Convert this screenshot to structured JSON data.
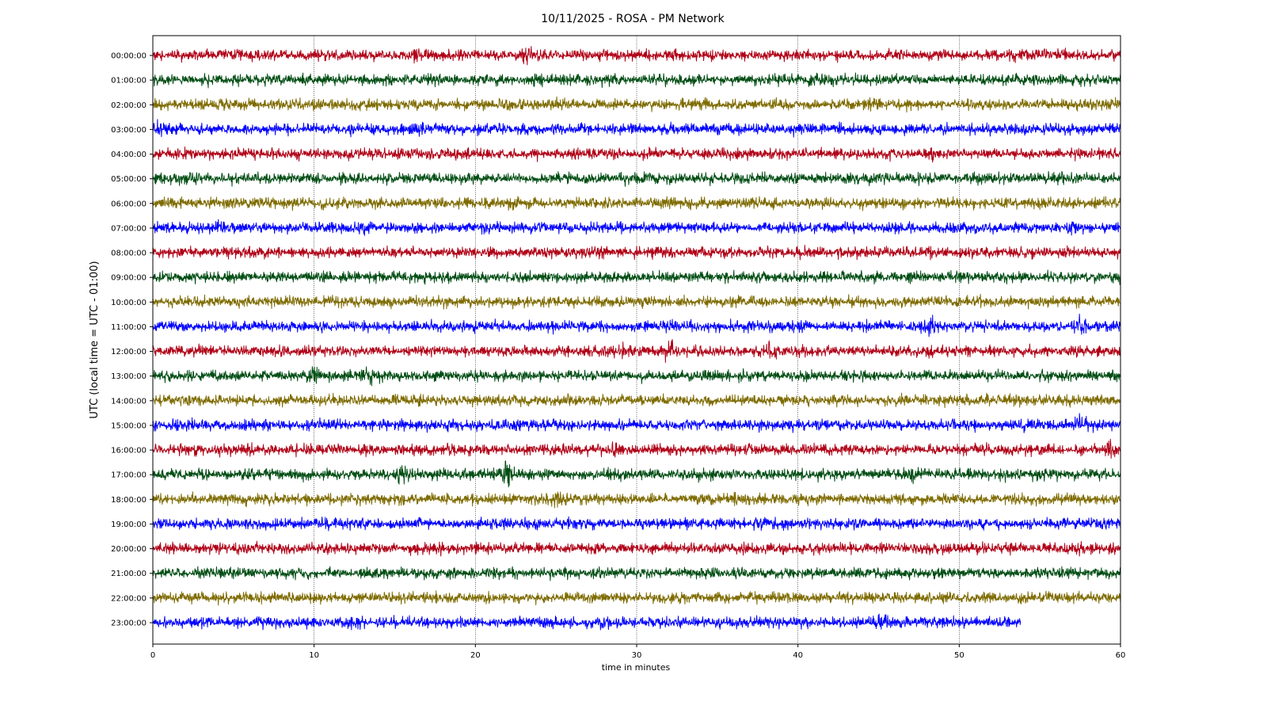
{
  "chart_data": {
    "type": "line",
    "title": "10/11/2025 - ROSA - PM Network",
    "xlabel": "time in minutes",
    "ylabel": "UTC (local time = UTC - 01:00)",
    "xlim": [
      0,
      60
    ],
    "x_ticks": [
      "0",
      "10",
      "20",
      "30",
      "40",
      "50",
      "60"
    ],
    "x_tick_values": [
      0,
      10,
      20,
      30,
      40,
      50,
      60
    ],
    "grid": "vertical dotted at 10-minute ticks",
    "palette": [
      "#b00016",
      "#004d13",
      "#7e6b00",
      "#0000ff"
    ],
    "rows": [
      {
        "label": "00:00:00",
        "end": 60,
        "color": "#b00016",
        "events": [
          {
            "t": 23.2,
            "amp": 1.9
          },
          {
            "t": 16.5,
            "amp": 1.4
          }
        ]
      },
      {
        "label": "01:00:00",
        "end": 60,
        "color": "#004d13",
        "events": [
          {
            "t": 10.5,
            "amp": 1.5
          },
          {
            "t": 41.2,
            "amp": 1.6
          }
        ]
      },
      {
        "label": "02:00:00",
        "end": 60,
        "color": "#7e6b00",
        "events": [
          {
            "t": 25.2,
            "amp": 1.4
          }
        ]
      },
      {
        "label": "03:00:00",
        "end": 60,
        "color": "#0000ff",
        "events": [
          {
            "t": 0.4,
            "amp": 1.7
          },
          {
            "t": 16.3,
            "amp": 1.4
          }
        ]
      },
      {
        "label": "04:00:00",
        "end": 60,
        "color": "#b00016",
        "events": [
          {
            "t": 48.3,
            "amp": 1.4
          }
        ]
      },
      {
        "label": "05:00:00",
        "end": 60,
        "color": "#004d13",
        "events": [
          {
            "t": 2.5,
            "amp": 1.8
          },
          {
            "t": 51.0,
            "amp": 1.4
          }
        ]
      },
      {
        "label": "06:00:00",
        "end": 60,
        "color": "#7e6b00",
        "events": [
          {
            "t": 51.3,
            "amp": 1.3
          }
        ]
      },
      {
        "label": "07:00:00",
        "end": 60,
        "color": "#0000ff",
        "events": [
          {
            "t": 4.3,
            "amp": 1.7
          },
          {
            "t": 57.0,
            "amp": 1.9
          }
        ]
      },
      {
        "label": "08:00:00",
        "end": 60,
        "color": "#b00016",
        "events": [
          {
            "t": 56.5,
            "amp": 1.3
          }
        ]
      },
      {
        "label": "09:00:00",
        "end": 60,
        "color": "#004d13",
        "events": []
      },
      {
        "label": "10:00:00",
        "end": 60,
        "color": "#7e6b00",
        "events": [
          {
            "t": 8.8,
            "amp": 1.3
          }
        ]
      },
      {
        "label": "11:00:00",
        "end": 60,
        "color": "#0000ff",
        "events": [
          {
            "t": 48.2,
            "amp": 1.6
          },
          {
            "t": 57.5,
            "amp": 1.8
          }
        ]
      },
      {
        "label": "12:00:00",
        "end": 60,
        "color": "#b00016",
        "events": [
          {
            "t": 32.0,
            "amp": 2.1
          },
          {
            "t": 38.2,
            "amp": 1.8
          },
          {
            "t": 29.1,
            "amp": 1.5
          }
        ]
      },
      {
        "label": "13:00:00",
        "end": 60,
        "color": "#004d13",
        "events": [
          {
            "t": 10.0,
            "amp": 2.0
          },
          {
            "t": 13.5,
            "amp": 1.9
          }
        ]
      },
      {
        "label": "14:00:00",
        "end": 60,
        "color": "#7e6b00",
        "events": [
          {
            "t": 51.6,
            "amp": 1.3
          }
        ]
      },
      {
        "label": "15:00:00",
        "end": 60,
        "color": "#0000ff",
        "events": [
          {
            "t": 51.0,
            "amp": 1.6
          },
          {
            "t": 57.5,
            "amp": 1.7
          }
        ]
      },
      {
        "label": "16:00:00",
        "end": 60,
        "color": "#b00016",
        "events": [
          {
            "t": 28.7,
            "amp": 1.5
          },
          {
            "t": 59.2,
            "amp": 1.9
          }
        ]
      },
      {
        "label": "17:00:00",
        "end": 60,
        "color": "#004d13",
        "events": [
          {
            "t": 22.0,
            "amp": 2.6
          },
          {
            "t": 15.5,
            "amp": 1.9
          },
          {
            "t": 28.0,
            "amp": 1.7
          },
          {
            "t": 47.0,
            "amp": 1.8
          }
        ]
      },
      {
        "label": "18:00:00",
        "end": 60,
        "color": "#7e6b00",
        "events": [
          {
            "t": 25.2,
            "amp": 1.6
          },
          {
            "t": 36.1,
            "amp": 1.5
          }
        ]
      },
      {
        "label": "19:00:00",
        "end": 60,
        "color": "#0000ff",
        "events": []
      },
      {
        "label": "20:00:00",
        "end": 60,
        "color": "#b00016",
        "events": [
          {
            "t": 51.3,
            "amp": 1.3
          }
        ]
      },
      {
        "label": "21:00:00",
        "end": 60,
        "color": "#004d13",
        "events": []
      },
      {
        "label": "22:00:00",
        "end": 60,
        "color": "#7e6b00",
        "events": [
          {
            "t": 34.6,
            "amp": 1.2
          }
        ]
      },
      {
        "label": "23:00:00",
        "end": 53.8,
        "color": "#0000ff",
        "events": [
          {
            "t": 45.1,
            "amp": 2.3
          }
        ]
      }
    ]
  }
}
